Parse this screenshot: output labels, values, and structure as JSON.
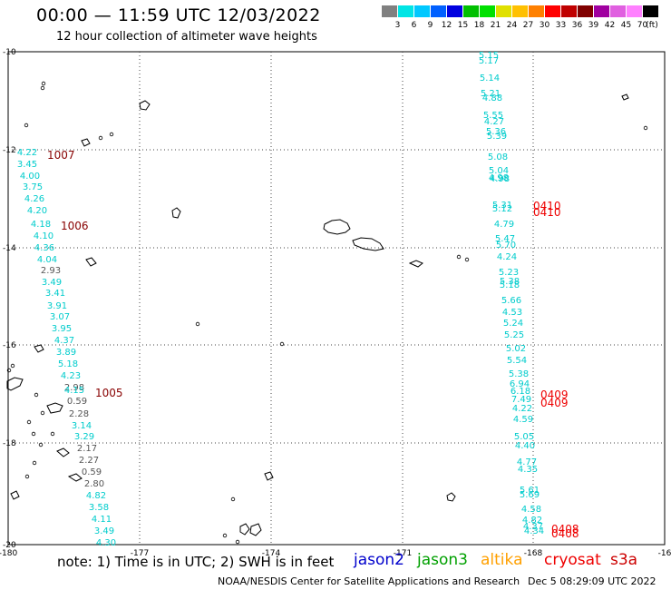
{
  "title": "00:00 — 11:59 UTC 12/03/2022",
  "subtitle": "12 hour collection of altimeter wave heights",
  "scale": {
    "colors": [
      "#808080",
      "#00e5e5",
      "#00c8ff",
      "#0060ff",
      "#0000e0",
      "#00c000",
      "#00e000",
      "#e0e000",
      "#ffc000",
      "#ff8000",
      "#ff0000",
      "#c00000",
      "#800000",
      "#a000a0",
      "#e060e0",
      "#ff80ff",
      "#000000"
    ],
    "labels": [
      "3",
      "6",
      "9",
      "12",
      "15",
      "18",
      "21",
      "24",
      "27",
      "30",
      "33",
      "36",
      "39",
      "42",
      "45",
      "70"
    ],
    "unit": "(ft)"
  },
  "axes": {
    "lon_labels": [
      "-180",
      "-177",
      "-174",
      "-171",
      "-168",
      "-16"
    ],
    "lat_labels": [
      "-10",
      "-12",
      "-14",
      "-16",
      "-18",
      "-20"
    ]
  },
  "note": "note: 1) Time is in UTC; 2) SWH is in feet",
  "legend": [
    {
      "name": "jason2",
      "color": "#0000cc"
    },
    {
      "name": "jason3",
      "color": "#00a000"
    },
    {
      "name": "altika",
      "color": "#ffa000"
    },
    {
      "name": "cryosat",
      "color": "#ee0000"
    },
    {
      "name": "s3a",
      "color": "#cc0000"
    }
  ],
  "footer": "NOAA/NESDIS Center for Satellite Applications and Research",
  "footer_date": "Dec  5 08:29:09 UTC 2022",
  "colors": {
    "cyan": "#00cccc",
    "gray": "#555555",
    "red": "#ee0000",
    "maroon": "#880000"
  },
  "pass_times": [
    {
      "text": "1007",
      "color": "maroon"
    },
    {
      "text": "1006",
      "color": "maroon"
    },
    {
      "text": "1005",
      "color": "maroon"
    },
    {
      "text": "0410",
      "color": "red"
    },
    {
      "text": "0410",
      "color": "red"
    },
    {
      "text": "0409",
      "color": "red"
    },
    {
      "text": "0409",
      "color": "red"
    },
    {
      "text": "0408",
      "color": "red"
    },
    {
      "text": "0408",
      "color": "red"
    }
  ],
  "track_left": [
    {
      "t": "4.22",
      "c": "cyan"
    },
    {
      "t": "3.45",
      "c": "cyan"
    },
    {
      "t": "4.00",
      "c": "cyan"
    },
    {
      "t": "3.75",
      "c": "cyan"
    },
    {
      "t": "4.26",
      "c": "cyan"
    },
    {
      "t": "4.20",
      "c": "cyan"
    },
    {
      "t": "4.18",
      "c": "cyan"
    },
    {
      "t": "4.10",
      "c": "cyan"
    },
    {
      "t": "4.36",
      "c": "cyan"
    },
    {
      "t": "4.04",
      "c": "cyan"
    },
    {
      "t": "2.93",
      "c": "gray"
    },
    {
      "t": "3.49",
      "c": "cyan"
    },
    {
      "t": "3.41",
      "c": "cyan"
    },
    {
      "t": "3.91",
      "c": "cyan"
    },
    {
      "t": "3.07",
      "c": "cyan"
    },
    {
      "t": "3.95",
      "c": "cyan"
    },
    {
      "t": "4.37",
      "c": "cyan"
    },
    {
      "t": "3.89",
      "c": "cyan"
    },
    {
      "t": "5.18",
      "c": "cyan"
    },
    {
      "t": "4.23",
      "c": "cyan"
    },
    {
      "t": "2.98",
      "c": "gray"
    },
    {
      "t": "4.15",
      "c": "cyan"
    },
    {
      "t": "0.59",
      "c": "gray"
    },
    {
      "t": "2.28",
      "c": "gray"
    },
    {
      "t": "3.14",
      "c": "cyan"
    },
    {
      "t": "3.29",
      "c": "cyan"
    },
    {
      "t": "2.17",
      "c": "gray"
    },
    {
      "t": "2.27",
      "c": "gray"
    },
    {
      "t": "0.59",
      "c": "gray"
    },
    {
      "t": "2.80",
      "c": "gray"
    },
    {
      "t": "4.82",
      "c": "cyan"
    },
    {
      "t": "3.58",
      "c": "cyan"
    },
    {
      "t": "4.11",
      "c": "cyan"
    },
    {
      "t": "3.49",
      "c": "cyan"
    },
    {
      "t": "4.30",
      "c": "cyan"
    }
  ],
  "track_right": [
    "5.15",
    "5.17",
    "5.14",
    "5.21",
    "4.88",
    "5.55",
    "4.27",
    "5.36",
    "5.39",
    "5.08",
    "5.04",
    "4.98",
    "4.98",
    "5.31",
    "5.12",
    "4.79",
    "5.47",
    "5.70",
    "4.24",
    "5.23",
    "5.38",
    "5.18",
    "5.66",
    "4.53",
    "5.24",
    "5.25",
    "5.02",
    "5.54",
    "5.38",
    "6.94",
    "6.18",
    "7.49",
    "4.22",
    "4.59",
    "5.05",
    "4.40",
    "4.77",
    "4.35",
    "5.61",
    "5.69",
    "4.58",
    "4.82",
    "4.37",
    "4.34"
  ]
}
